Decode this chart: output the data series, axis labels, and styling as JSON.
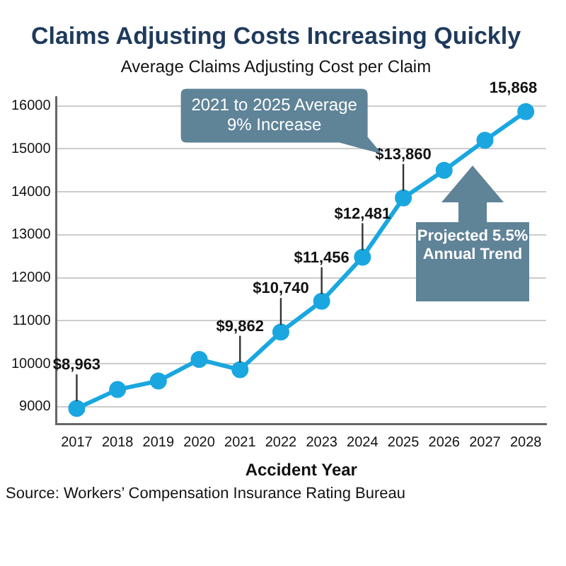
{
  "chart_data": {
    "type": "line",
    "title": "Claims Adjusting Costs Increasing Quickly",
    "subtitle": "Average Claims Adjusting Cost per Claim",
    "xlabel": "Accident Year",
    "categories": [
      "2017",
      "2018",
      "2019",
      "2020",
      "2021",
      "2022",
      "2023",
      "2024",
      "2025",
      "2026",
      "2027",
      "2028"
    ],
    "series": [
      {
        "color": "#1aa7e0",
        "values": [
          8963,
          9400,
          9600,
          10100,
          9862,
          10740,
          11456,
          12481,
          13860,
          14500,
          15200,
          15868
        ],
        "value_labels": [
          "$8,963",
          null,
          null,
          null,
          "$9,862",
          "$10,740",
          "$11,456",
          "$12,481",
          "$13,860",
          null,
          null,
          "15,868"
        ]
      }
    ],
    "ylim": [
      8600,
      16200
    ],
    "yticks": [
      9000,
      10000,
      11000,
      12000,
      13000,
      14000,
      15000,
      16000
    ],
    "grid": "y",
    "legend": false,
    "marker": "circle",
    "line_style": "solid",
    "annotations": [
      "2021 to 2025 Average 9% Increase",
      "Projected 5.5% Annual Trend",
      "Source: Workers’ Compensation Insurance Rating Bureau"
    ]
  }
}
